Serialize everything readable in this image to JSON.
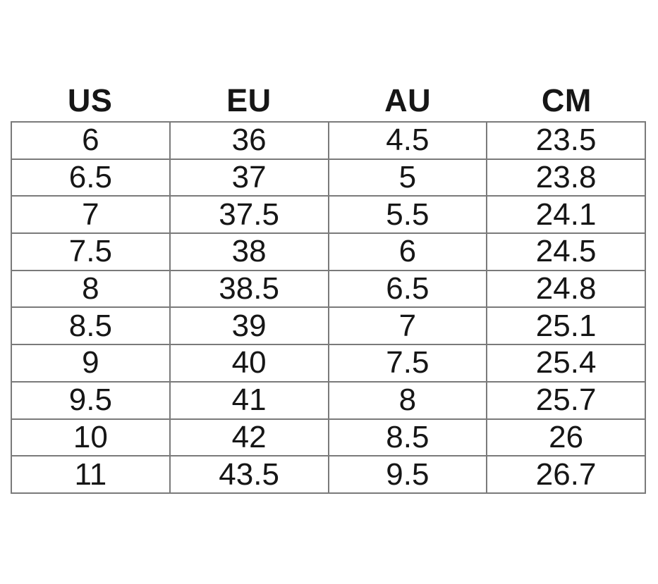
{
  "colors": {
    "background": "#ffffff",
    "text": "#161616",
    "grid_border": "#7a7a7a"
  },
  "chart_data": {
    "type": "table",
    "title": "",
    "columns": [
      "US",
      "EU",
      "AU",
      "CM"
    ],
    "rows": [
      [
        "6",
        "36",
        "4.5",
        "23.5"
      ],
      [
        "6.5",
        "37",
        "5",
        "23.8"
      ],
      [
        "7",
        "37.5",
        "5.5",
        "24.1"
      ],
      [
        "7.5",
        "38",
        "6",
        "24.5"
      ],
      [
        "8",
        "38.5",
        "6.5",
        "24.8"
      ],
      [
        "8.5",
        "39",
        "7",
        "25.1"
      ],
      [
        "9",
        "40",
        "7.5",
        "25.4"
      ],
      [
        "9.5",
        "41",
        "8",
        "25.7"
      ],
      [
        "10",
        "42",
        "8.5",
        "26"
      ],
      [
        "11",
        "43.5",
        "9.5",
        "26.7"
      ]
    ],
    "layout": {
      "grid": "on",
      "header_row_outside_grid": true,
      "columns_equal_width": true
    }
  }
}
